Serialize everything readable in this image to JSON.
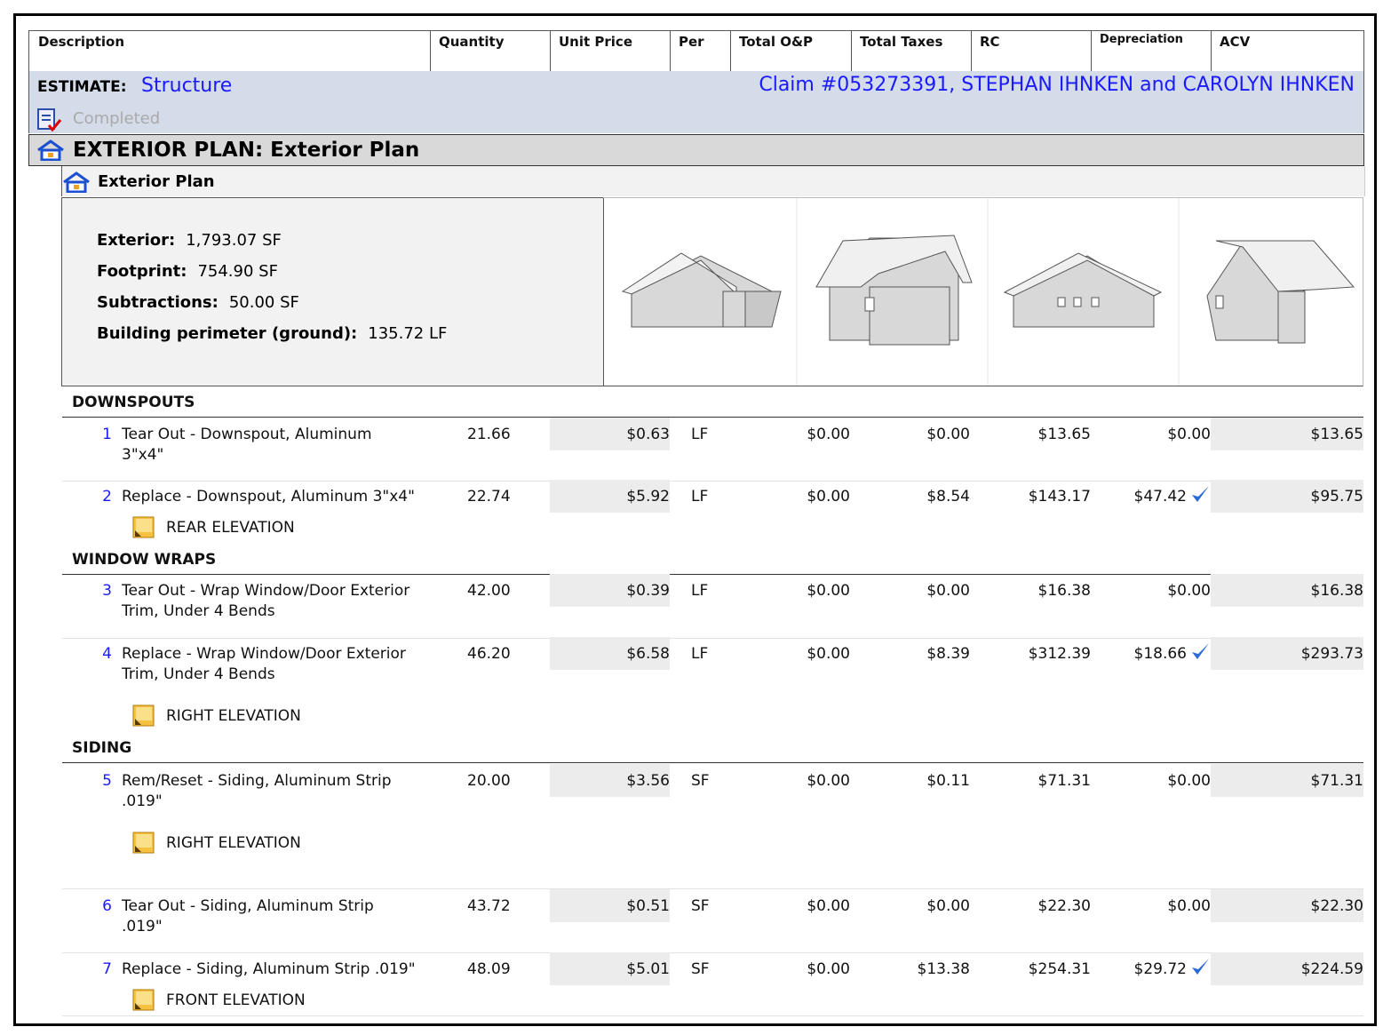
{
  "columns": [
    "Description",
    "Quantity",
    "Unit Price",
    "Per",
    "Total O&P",
    "Total Taxes",
    "RC",
    "Depreciation",
    "ACV"
  ],
  "estimate": {
    "label": "ESTIMATE:",
    "name": "Structure",
    "claim": "Claim #053273391, STEPHAN IHNKEN and CAROLYN IHNKEN",
    "status": "Completed"
  },
  "plan": {
    "title": "EXTERIOR PLAN: Exterior Plan",
    "subtitle": "Exterior Plan",
    "stats": [
      {
        "label": "Exterior:",
        "value": "1,793.07 SF"
      },
      {
        "label": "Footprint:",
        "value": "754.90 SF"
      },
      {
        "label": "Subtractions:",
        "value": "50.00 SF"
      },
      {
        "label": "Building perimeter (ground):",
        "value": "135.72 LF"
      }
    ]
  },
  "sections": [
    {
      "name": "DOWNSPOUTS",
      "items": [
        {
          "number": "1",
          "description": [
            "Tear Out - Downspout, Aluminum",
            "3\"x4\""
          ],
          "quantity": "21.66",
          "unit_price": "$0.63",
          "per": "LF",
          "total_op": "$0.00",
          "total_taxes": "$0.00",
          "rc": "$13.65",
          "depreciation": "$0.00",
          "acv": "$13.65"
        },
        {
          "number": "2",
          "description": [
            "Replace - Downspout, Aluminum 3\"x4\""
          ],
          "quantity": "22.74",
          "unit_price": "$5.92",
          "per": "LF",
          "total_op": "$0.00",
          "total_taxes": "$8.54",
          "rc": "$143.17",
          "depreciation": "$47.42",
          "depreciation_checked": true,
          "acv": "$95.75",
          "note": "REAR ELEVATION"
        }
      ]
    },
    {
      "name": "WINDOW WRAPS",
      "items": [
        {
          "number": "3",
          "description": [
            "Tear Out - Wrap Window/Door Exterior",
            "Trim, Under 4 Bends"
          ],
          "quantity": "42.00",
          "unit_price": "$0.39",
          "per": "LF",
          "total_op": "$0.00",
          "total_taxes": "$0.00",
          "rc": "$16.38",
          "depreciation": "$0.00",
          "acv": "$16.38"
        },
        {
          "number": "4",
          "description": [
            "Replace - Wrap Window/Door Exterior",
            "Trim, Under 4 Bends"
          ],
          "quantity": "46.20",
          "unit_price": "$6.58",
          "per": "LF",
          "total_op": "$0.00",
          "total_taxes": "$8.39",
          "rc": "$312.39",
          "depreciation": "$18.66",
          "depreciation_checked": true,
          "acv": "$293.73",
          "note": "RIGHT ELEVATION"
        }
      ]
    },
    {
      "name": "SIDING",
      "items": [
        {
          "number": "5",
          "description": [
            "Rem/Reset - Siding, Aluminum Strip",
            ".019\""
          ],
          "quantity": "20.00",
          "unit_price": "$3.56",
          "per": "SF",
          "total_op": "$0.00",
          "total_taxes": "$0.11",
          "rc": "$71.31",
          "depreciation": "$0.00",
          "acv": "$71.31",
          "note": "RIGHT ELEVATION"
        },
        {
          "number": "6",
          "description": [
            "Tear Out - Siding, Aluminum Strip",
            ".019\""
          ],
          "quantity": "43.72",
          "unit_price": "$0.51",
          "per": "SF",
          "total_op": "$0.00",
          "total_taxes": "$0.00",
          "rc": "$22.30",
          "depreciation": "$0.00",
          "acv": "$22.30"
        },
        {
          "number": "7",
          "description": [
            "Replace - Siding, Aluminum Strip .019\""
          ],
          "quantity": "48.09",
          "unit_price": "$5.01",
          "per": "SF",
          "total_op": "$0.00",
          "total_taxes": "$13.38",
          "rc": "$254.31",
          "depreciation": "$29.72",
          "depreciation_checked": true,
          "acv": "$224.59",
          "note": "FRONT ELEVATION"
        }
      ]
    }
  ]
}
